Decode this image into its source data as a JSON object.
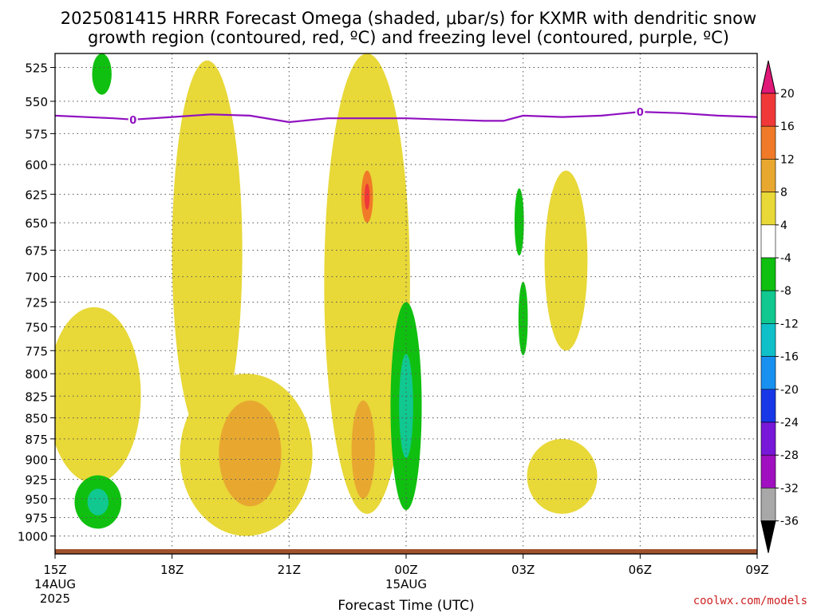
{
  "title_line1": "2025081415 HRRR Forecast Omega (shaded, μbar/s) for KXMR with dendritic snow",
  "title_line2": "growth region (contoured, red, ºC) and freezing level (contoured, purple, ºC)",
  "credit": "coolwx.com/models",
  "chart_data": {
    "type": "contour",
    "xlabel": "Forecast Time (UTC)",
    "ylabel": "",
    "x_range": [
      0,
      18
    ],
    "x_range_note": "hours from 15Z 14AUG 2025",
    "y_scale": "log",
    "y_range": [
      1025,
      515
    ],
    "x_ticks": [
      {
        "x": 0,
        "label": "15Z",
        "sub1": "14AUG",
        "sub2": "2025"
      },
      {
        "x": 3,
        "label": "18Z",
        "sub1": "",
        "sub2": ""
      },
      {
        "x": 6,
        "label": "21Z",
        "sub1": "",
        "sub2": ""
      },
      {
        "x": 9,
        "label": "00Z",
        "sub1": "15AUG",
        "sub2": ""
      },
      {
        "x": 12,
        "label": "03Z",
        "sub1": "",
        "sub2": ""
      },
      {
        "x": 15,
        "label": "06Z",
        "sub1": "",
        "sub2": ""
      },
      {
        "x": 18,
        "label": "09Z",
        "sub1": "",
        "sub2": ""
      }
    ],
    "y_ticks": [
      525,
      550,
      575,
      600,
      625,
      650,
      675,
      700,
      725,
      750,
      775,
      800,
      825,
      850,
      875,
      900,
      925,
      950,
      975,
      1000
    ],
    "grid": true,
    "colorbar": {
      "colors": [
        "#e01878",
        "#f03838",
        "#f07a28",
        "#e8a830",
        "#e8d838",
        "#ffffff",
        "#10c010",
        "#10c890",
        "#10c0c8",
        "#1890f0",
        "#1838e8",
        "#7818d8",
        "#a010c0",
        "#a8a8a8",
        "#000000"
      ],
      "labels": [
        "20",
        "16",
        "12",
        "8",
        "4",
        "-4",
        "-8",
        "-12",
        "-16",
        "-20",
        "-24",
        "-28",
        "-32",
        "-36"
      ]
    },
    "freezing_level": {
      "label": "0",
      "color": "#9010c0",
      "x": [
        0,
        1.5,
        2,
        3,
        4,
        5,
        6,
        7,
        8,
        9,
        10,
        11,
        11.5,
        12,
        13,
        14,
        15,
        16,
        17,
        18
      ],
      "p": [
        561,
        563,
        564,
        562,
        560,
        561,
        566,
        563,
        563,
        563,
        564,
        565,
        565,
        561,
        562,
        561,
        558,
        559,
        561,
        562
      ],
      "labels_at": [
        2,
        15
      ]
    },
    "omega_features": [
      {
        "name": "ascent-0-2h-low",
        "level": 4,
        "center": [
          1.0,
          830
        ],
        "radius_x": 1.2,
        "top": 730,
        "bottom": 930
      },
      {
        "name": "ascent-2-4h-column",
        "level": 4,
        "center": [
          3.9,
          700
        ],
        "radius_x": 0.9,
        "top": 520,
        "bottom": 880
      },
      {
        "name": "ascent-3-6h-low",
        "level": 4,
        "center": [
          4.9,
          900
        ],
        "radius_x": 1.7,
        "top": 800,
        "bottom": 1000
      },
      {
        "name": "ascent-6-9h-column",
        "level": 4,
        "center": [
          8.0,
          650
        ],
        "radius_x": 1.1,
        "top": 515,
        "bottom": 970
      },
      {
        "name": "max-8h-625",
        "level": 12,
        "center": [
          8.0,
          625
        ],
        "radius_x": 0.15,
        "top": 605,
        "bottom": 650
      },
      {
        "name": "max-5h-875",
        "level": 8,
        "center": [
          5.0,
          890
        ],
        "radius_x": 0.8,
        "top": 830,
        "bottom": 960
      },
      {
        "name": "max-8h-850",
        "level": 8,
        "center": [
          7.9,
          860
        ],
        "radius_x": 0.3,
        "top": 830,
        "bottom": 950
      },
      {
        "name": "ascent-13h-mid",
        "level": 4,
        "center": [
          13.1,
          690
        ],
        "radius_x": 0.55,
        "top": 605,
        "bottom": 775
      },
      {
        "name": "ascent-13h-low",
        "level": 4,
        "center": [
          13.0,
          935
        ],
        "radius_x": 0.9,
        "top": 875,
        "bottom": 970
      },
      {
        "name": "descent-1h-525",
        "level": -4,
        "center": [
          1.2,
          530
        ],
        "radius_x": 0.25,
        "top": 515,
        "bottom": 545
      },
      {
        "name": "descent-1h-950",
        "level": -4,
        "center": [
          1.1,
          950
        ],
        "radius_x": 0.6,
        "top": 920,
        "bottom": 990
      },
      {
        "name": "descent-9h",
        "level": -4,
        "center": [
          9.0,
          830
        ],
        "radius_x": 0.4,
        "top": 725,
        "bottom": 965
      },
      {
        "name": "descent-12h-625",
        "level": -4,
        "center": [
          11.9,
          640
        ],
        "radius_x": 0.12,
        "top": 620,
        "bottom": 680
      },
      {
        "name": "descent-12h-725",
        "level": -4,
        "center": [
          12.0,
          735
        ],
        "radius_x": 0.12,
        "top": 705,
        "bottom": 780
      }
    ]
  }
}
